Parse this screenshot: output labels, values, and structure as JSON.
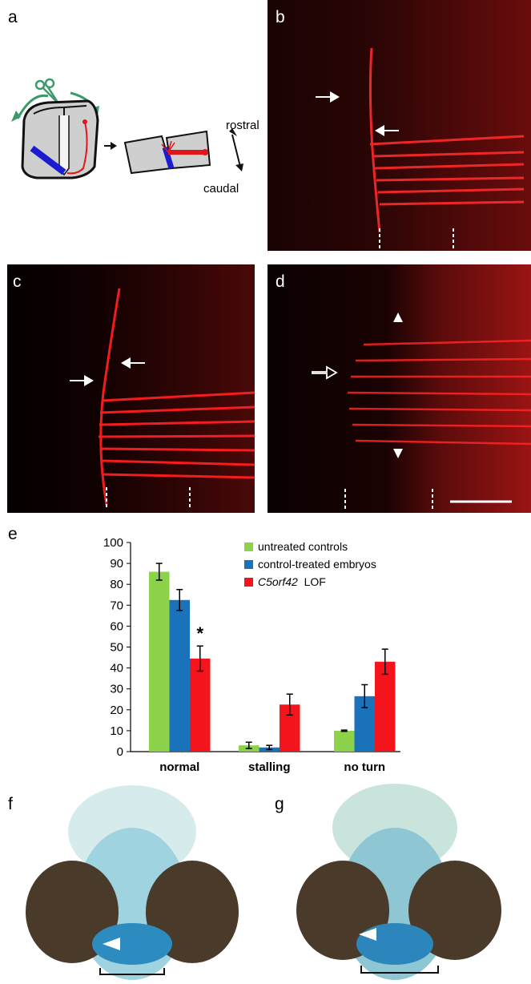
{
  "panels": {
    "a": {
      "label": "a",
      "rostral": "rostral",
      "caudal": "caudal"
    },
    "b": {
      "label": "b"
    },
    "c": {
      "label": "c"
    },
    "d": {
      "label": "d"
    },
    "e": {
      "label": "e"
    },
    "f": {
      "label": "f"
    },
    "g": {
      "label": "g"
    }
  },
  "colors": {
    "green": "#8cd24a",
    "blue": "#1a72bb",
    "red": "#f4141c",
    "fluor_red": "#e0161a",
    "alcian": "#3fb4d6",
    "eye": "#4a3a2a"
  },
  "chart_data": {
    "type": "bar",
    "categories": [
      "normal",
      "stalling",
      "no turn"
    ],
    "series": [
      {
        "name": "untreated controls",
        "values": [
          86,
          3,
          10
        ],
        "errors": [
          4,
          1.5,
          0.3
        ]
      },
      {
        "name": "control-treated embryos",
        "values": [
          72.5,
          2,
          26.5
        ],
        "errors": [
          5,
          1,
          5.5
        ]
      },
      {
        "name": "LOF",
        "name_italic": "C5orf42",
        "values": [
          44.5,
          22.5,
          43
        ],
        "errors": [
          6,
          5,
          6
        ]
      }
    ],
    "yticks": [
      0,
      10,
      20,
      30,
      40,
      50,
      60,
      70,
      80,
      90,
      100
    ],
    "ylim": [
      0,
      100
    ],
    "annotation": "*"
  }
}
